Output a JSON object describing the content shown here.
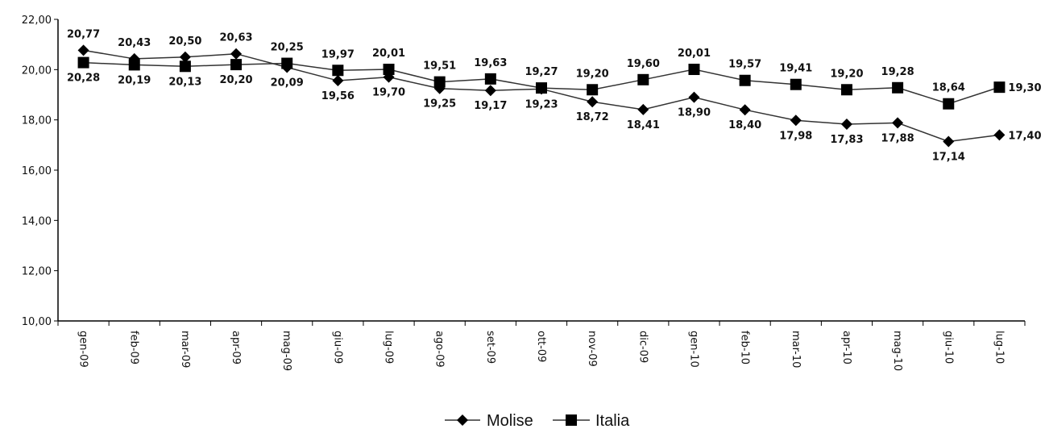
{
  "chart_data": {
    "type": "line",
    "title": "",
    "xlabel": "",
    "ylabel": "",
    "ylim": [
      10,
      22
    ],
    "yticks": [
      "10,00",
      "12,00",
      "14,00",
      "16,00",
      "18,00",
      "20,00",
      "22,00"
    ],
    "categories": [
      "gen-09",
      "feb-09",
      "mar-09",
      "apr-09",
      "mag-09",
      "giu-09",
      "lug-09",
      "ago-09",
      "set-09",
      "ott-09",
      "nov-09",
      "dic-09",
      "gen-10",
      "feb-10",
      "mar-10",
      "apr-10",
      "mag-10",
      "giu-10",
      "lug-10"
    ],
    "series": [
      {
        "name": "Molise",
        "marker": "diamond",
        "values": [
          20.77,
          20.43,
          20.5,
          20.63,
          20.09,
          19.56,
          19.7,
          19.25,
          19.17,
          19.23,
          18.72,
          18.41,
          18.9,
          18.4,
          17.98,
          17.83,
          17.88,
          17.14,
          17.4
        ],
        "labels": [
          "20,77",
          "20,43",
          "20,50",
          "20,63",
          "20,09",
          "19,56",
          "19,70",
          "19,25",
          "19,17",
          "19,23",
          "18,72",
          "18,41",
          "18,90",
          "18,40",
          "17,98",
          "17,83",
          "17,88",
          "17,14",
          "17,40"
        ]
      },
      {
        "name": "Italia",
        "marker": "square",
        "values": [
          20.28,
          20.19,
          20.13,
          20.2,
          20.25,
          19.97,
          20.01,
          19.51,
          19.63,
          19.27,
          19.2,
          19.6,
          20.01,
          19.57,
          19.41,
          19.2,
          19.28,
          18.64,
          19.3
        ],
        "labels": [
          "20,28",
          "20,19",
          "20,13",
          "20,20",
          "20,25",
          "19,97",
          "20,01",
          "19,51",
          "19,63",
          "19,27",
          "19,20",
          "19,60",
          "20,01",
          "19,57",
          "19,41",
          "19,20",
          "19,28",
          "18,64",
          "19,30"
        ]
      }
    ],
    "grid": false,
    "legend_position": "bottom-center",
    "colors": {
      "line": "#333333",
      "marker": "#000000",
      "axis": "#000000"
    }
  }
}
